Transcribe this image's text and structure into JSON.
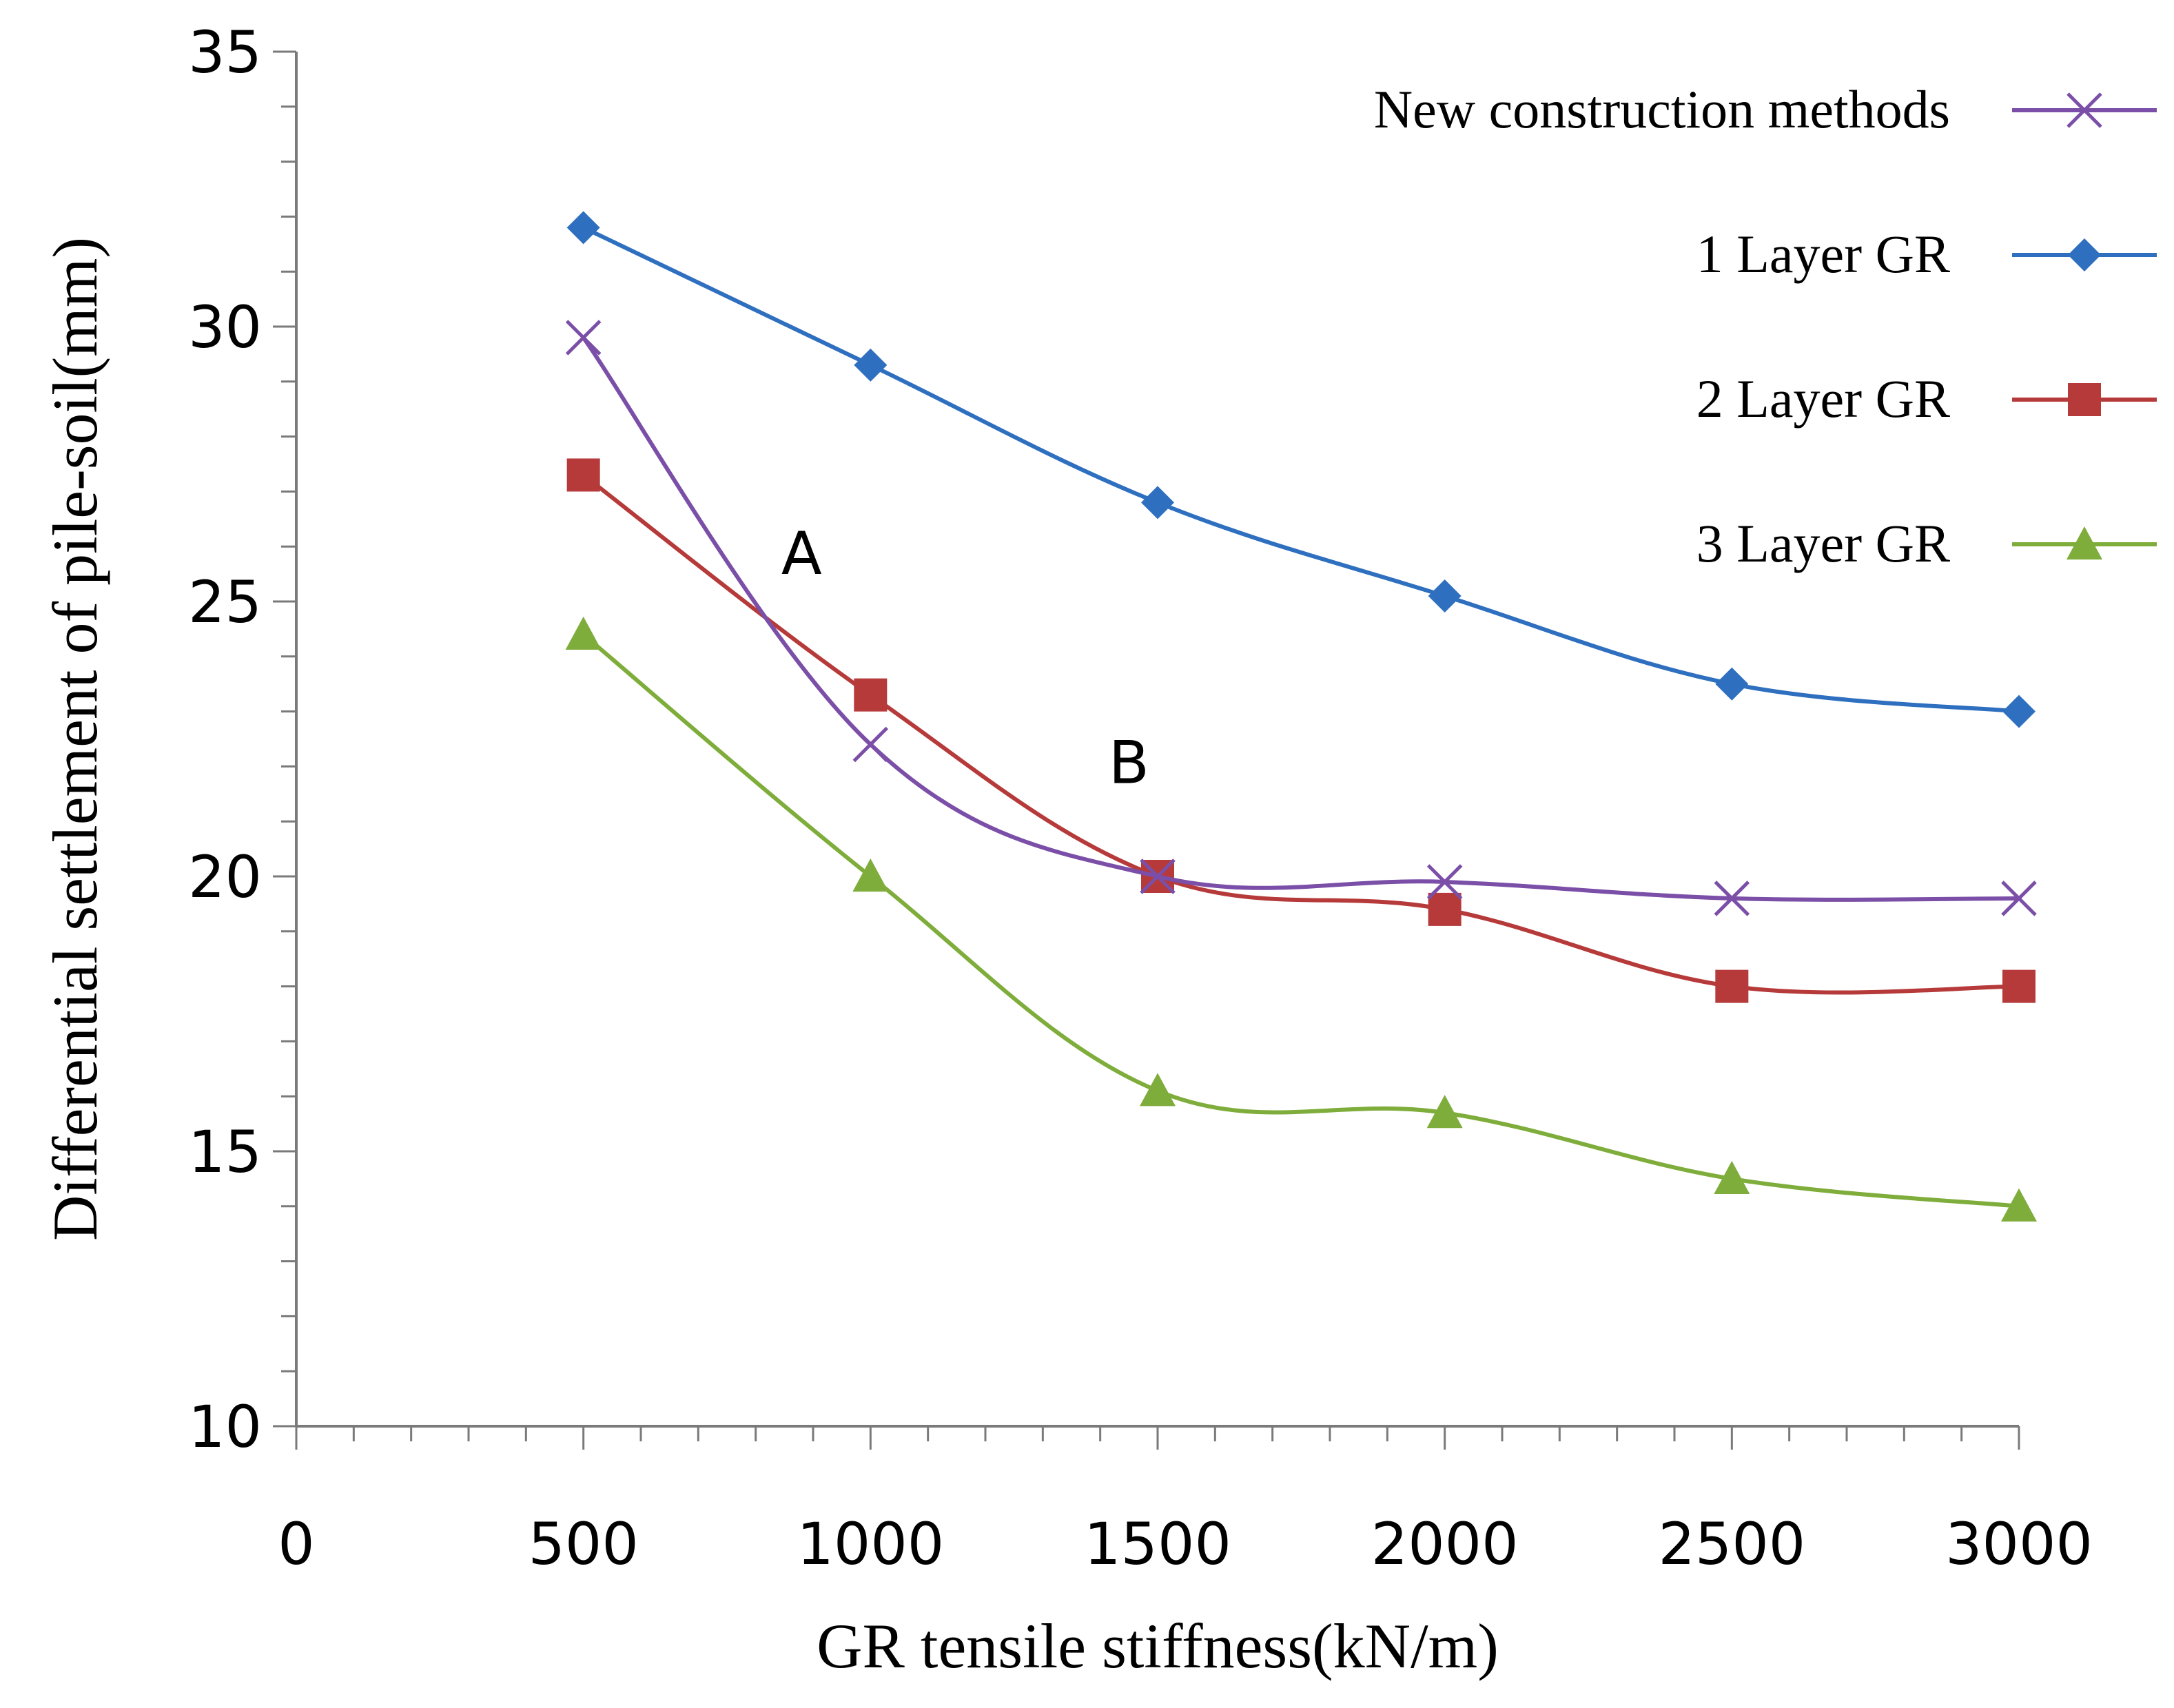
{
  "chart_data": {
    "type": "line",
    "title": "",
    "xlabel": "GR tensile stiffness(kN/m)",
    "ylabel": "Differential settlement of pile-soil(mm)",
    "xlim": [
      0,
      3000
    ],
    "ylim": [
      10,
      35
    ],
    "x_ticks": [
      0,
      500,
      1000,
      1500,
      2000,
      2500,
      3000
    ],
    "y_ticks": [
      10,
      15,
      20,
      25,
      30,
      35
    ],
    "x_tick_labels": [
      "0",
      "500",
      "1000",
      "1500",
      "2000",
      "2500",
      "3000"
    ],
    "y_tick_labels": [
      "10",
      "15",
      "20",
      "25",
      "30",
      "35"
    ],
    "x": [
      500,
      1000,
      1500,
      2000,
      2500,
      3000
    ],
    "series": [
      {
        "name": "New construction methods",
        "marker": "x",
        "color": "#7b4fa8",
        "values": [
          29.8,
          22.4,
          20.0,
          19.9,
          19.6,
          19.6
        ]
      },
      {
        "name": "1 Layer GR",
        "marker": "diamond",
        "color": "#2e6fbf",
        "values": [
          31.8,
          29.3,
          26.8,
          25.1,
          23.5,
          23.0
        ]
      },
      {
        "name": "2 Layer GR",
        "marker": "square",
        "color": "#b63a3a",
        "values": [
          27.3,
          23.3,
          20.0,
          19.4,
          18.0,
          18.0
        ]
      },
      {
        "name": "3 Layer GR",
        "marker": "triangle",
        "color": "#7fad3b",
        "values": [
          24.4,
          20.0,
          16.1,
          15.7,
          14.5,
          14.0
        ]
      }
    ],
    "annotations": [
      {
        "text": "A",
        "x": 880,
        "y": 25.5
      },
      {
        "text": "B",
        "x": 1450,
        "y": 21.7
      }
    ],
    "legend_position": "top-right",
    "grid": false
  }
}
